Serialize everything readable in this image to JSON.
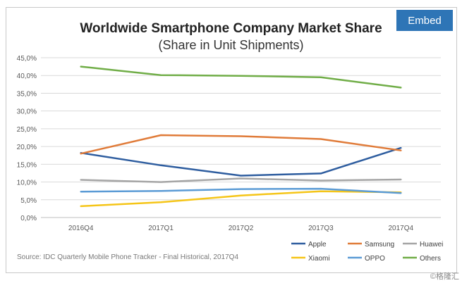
{
  "embed_label": "Embed",
  "watermark": "©格隆汇",
  "chart_data": {
    "type": "line",
    "title": "Worldwide Smartphone Company Market Share",
    "subtitle": "(Share in Unit Shipments)",
    "xlabel": "",
    "ylabel": "",
    "categories": [
      "2016Q4",
      "2017Q1",
      "2017Q2",
      "2017Q3",
      "2017Q4"
    ],
    "ylim": [
      0,
      45
    ],
    "yticks": [
      0,
      5,
      10,
      15,
      20,
      25,
      30,
      35,
      40,
      45
    ],
    "ytick_labels": [
      "0,0%",
      "5,0%",
      "10,0%",
      "15,0%",
      "20,0%",
      "25,0%",
      "30,0%",
      "35,0%",
      "40,0%",
      "45,0%"
    ],
    "grid": true,
    "legend_position": "bottom-right",
    "series": [
      {
        "name": "Apple",
        "color": "#2e5d9f",
        "values": [
          18.2,
          14.7,
          11.8,
          12.4,
          19.6
        ]
      },
      {
        "name": "Samsung",
        "color": "#e07b39",
        "values": [
          18.0,
          23.2,
          22.9,
          22.1,
          18.9
        ]
      },
      {
        "name": "Huawei",
        "color": "#a5a5a5",
        "values": [
          10.6,
          10.0,
          11.0,
          10.4,
          10.7
        ]
      },
      {
        "name": "Xiaomi",
        "color": "#f5c518",
        "values": [
          3.2,
          4.3,
          6.2,
          7.4,
          7.1
        ]
      },
      {
        "name": "OPPO",
        "color": "#5b9bd5",
        "values": [
          7.3,
          7.5,
          8.0,
          8.1,
          6.9
        ]
      },
      {
        "name": "Others",
        "color": "#70ad47",
        "values": [
          42.5,
          40.1,
          39.9,
          39.5,
          36.6
        ]
      }
    ],
    "source": "Source: IDC Quarterly Mobile Phone Tracker - Final Historical, 2017Q4"
  }
}
